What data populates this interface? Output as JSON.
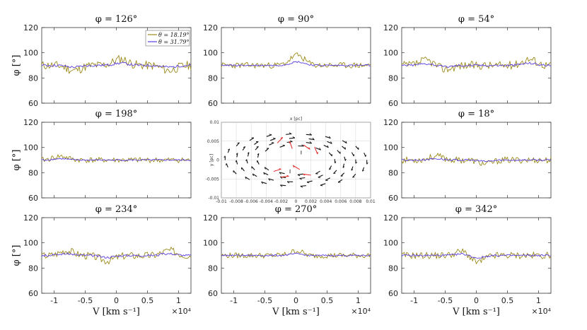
{
  "chart_data": [
    {
      "id": "p0",
      "type": "line",
      "title": "φ = 126°",
      "ylabel": "φ [°]",
      "ylim": [
        60,
        120
      ],
      "xlim": [
        -12000,
        12000
      ],
      "yticks": [
        60,
        80,
        100,
        120
      ],
      "xticks": [
        -10000,
        -5000,
        0,
        5000,
        10000
      ],
      "noise": 3.6,
      "seed": 11,
      "bumps": [
        {
          "x": -6800,
          "a": -4
        },
        {
          "x": 700,
          "a": 5
        },
        {
          "x": 8500,
          "a": -4
        }
      ],
      "series": [
        {
          "name": "θ = 18.19°",
          "color": "#9c8a1c",
          "samples": 121,
          "x_range": [
            -12000,
            12000
          ],
          "baseline": 90
        },
        {
          "name": "θ = 31.79°",
          "color": "#5a3ce0",
          "samples": 121,
          "x_range": [
            -12000,
            12000
          ],
          "baseline": 90
        }
      ],
      "legend": {
        "entries": [
          "θ = 18.19°",
          "θ = 31.79°"
        ],
        "placement": "top-right"
      }
    },
    {
      "id": "p1",
      "type": "line",
      "title": "φ = 90°",
      "ylim": [
        60,
        120
      ],
      "xlim": [
        -12000,
        12000
      ],
      "yticks": [
        60,
        80,
        100,
        120
      ],
      "xticks": [
        -10000,
        -5000,
        0,
        5000,
        10000
      ],
      "noise": 2.4,
      "seed": 23,
      "bumps": [
        {
          "x": 200,
          "a": 8
        }
      ],
      "series": [
        {
          "name": "θ = 18.19°",
          "color": "#9c8a1c",
          "samples": 121,
          "x_range": [
            -12000,
            12000
          ],
          "baseline": 90
        },
        {
          "name": "θ = 31.79°",
          "color": "#5a3ce0",
          "samples": 121,
          "x_range": [
            -12000,
            12000
          ],
          "baseline": 90
        }
      ]
    },
    {
      "id": "p2",
      "type": "line",
      "title": "φ = 54°",
      "ylim": [
        60,
        120
      ],
      "xlim": [
        -12000,
        12000
      ],
      "yticks": [
        60,
        80,
        100,
        120
      ],
      "xticks": [
        -10000,
        -5000,
        0,
        5000,
        10000
      ],
      "noise": 3.3,
      "seed": 37,
      "bumps": [
        {
          "x": -8000,
          "a": 4
        },
        {
          "x": -5000,
          "a": -3
        },
        {
          "x": 8500,
          "a": 5
        }
      ],
      "series": [
        {
          "name": "θ = 18.19°",
          "color": "#9c8a1c",
          "samples": 121,
          "x_range": [
            -12000,
            12000
          ],
          "baseline": 90
        },
        {
          "name": "θ = 31.79°",
          "color": "#5a3ce0",
          "samples": 121,
          "x_range": [
            -12000,
            12000
          ],
          "baseline": 90
        }
      ]
    },
    {
      "id": "p3",
      "type": "line",
      "title": "φ = 198°",
      "ylabel": "φ [°]",
      "ylim": [
        60,
        120
      ],
      "xlim": [
        -12000,
        12000
      ],
      "yticks": [
        60,
        80,
        100,
        120
      ],
      "xticks": [
        -10000,
        -5000,
        0,
        5000,
        10000
      ],
      "noise": 2.2,
      "seed": 41,
      "bumps": [
        {
          "x": -9000,
          "a": 3
        }
      ],
      "series": [
        {
          "name": "θ = 18.19°",
          "color": "#9c8a1c",
          "samples": 121,
          "x_range": [
            -12000,
            12000
          ],
          "baseline": 90
        },
        {
          "name": "θ = 31.79°",
          "color": "#5a3ce0",
          "samples": 121,
          "x_range": [
            -12000,
            12000
          ],
          "baseline": 90
        }
      ]
    },
    {
      "id": "p5",
      "type": "line",
      "title": "φ = 18°",
      "ylim": [
        60,
        120
      ],
      "xlim": [
        -12000,
        12000
      ],
      "yticks": [
        60,
        80,
        100,
        120
      ],
      "xticks": [
        -10000,
        -5000,
        0,
        5000,
        10000
      ],
      "noise": 2.6,
      "seed": 53,
      "bumps": [
        {
          "x": -6500,
          "a": 3
        },
        {
          "x": 1500,
          "a": -3
        }
      ],
      "series": [
        {
          "name": "θ = 18.19°",
          "color": "#9c8a1c",
          "samples": 121,
          "x_range": [
            -12000,
            12000
          ],
          "baseline": 90
        },
        {
          "name": "θ = 31.79°",
          "color": "#5a3ce0",
          "samples": 121,
          "x_range": [
            -12000,
            12000
          ],
          "baseline": 90
        }
      ]
    },
    {
      "id": "p6",
      "type": "line",
      "title": "φ = 234°",
      "ylabel": "φ [°]",
      "ylim": [
        60,
        120
      ],
      "xlim": [
        -12000,
        12000
      ],
      "yticks": [
        60,
        80,
        100,
        120
      ],
      "xticks": [
        -10000,
        -5000,
        0,
        5000,
        10000
      ],
      "noise": 3.0,
      "seed": 67,
      "bumps": [
        {
          "x": -8000,
          "a": 4
        },
        {
          "x": -1500,
          "a": -4
        },
        {
          "x": 8500,
          "a": 4
        }
      ],
      "series": [
        {
          "name": "θ = 18.19°",
          "color": "#9c8a1c",
          "samples": 121,
          "x_range": [
            -12000,
            12000
          ],
          "baseline": 90
        },
        {
          "name": "θ = 31.79°",
          "color": "#5a3ce0",
          "samples": 121,
          "x_range": [
            -12000,
            12000
          ],
          "baseline": 90
        }
      ]
    },
    {
      "id": "p7",
      "type": "line",
      "title": "φ = 270°",
      "xlabel": "V [km s⁻¹]",
      "ylim": [
        60,
        120
      ],
      "xlim": [
        -12000,
        12000
      ],
      "yticks": [
        60,
        80,
        100,
        120
      ],
      "xticks": [
        -10000,
        -5000,
        0,
        5000,
        10000
      ],
      "noise": 2.2,
      "seed": 79,
      "bumps": [
        {
          "x": 500,
          "a": 7
        },
        {
          "x": 1000,
          "a": -4
        }
      ],
      "series": [
        {
          "name": "θ = 18.19°",
          "color": "#9c8a1c",
          "samples": 121,
          "x_range": [
            -12000,
            12000
          ],
          "baseline": 90
        },
        {
          "name": "θ = 31.79°",
          "color": "#5a3ce0",
          "samples": 121,
          "x_range": [
            -12000,
            12000
          ],
          "baseline": 90
        }
      ]
    },
    {
      "id": "p8",
      "type": "line",
      "title": "φ = 342°",
      "ylim": [
        60,
        120
      ],
      "xlim": [
        -12000,
        12000
      ],
      "yticks": [
        60,
        80,
        100,
        120
      ],
      "xticks": [
        -10000,
        -5000,
        0,
        5000,
        10000
      ],
      "noise": 2.8,
      "seed": 91,
      "bumps": [
        {
          "x": -2000,
          "a": 4
        },
        {
          "x": 0,
          "a": -6
        }
      ],
      "series": [
        {
          "name": "θ = 18.19°",
          "color": "#9c8a1c",
          "samples": 121,
          "x_range": [
            -12000,
            12000
          ],
          "baseline": 90
        },
        {
          "name": "θ = 31.79°",
          "color": "#5a3ce0",
          "samples": 121,
          "x_range": [
            -12000,
            12000
          ],
          "baseline": 90
        }
      ]
    },
    {
      "id": "p4",
      "type": "vector-field",
      "title": "x [pc]",
      "xlabel": "x [pc]",
      "ylabel": "y [pc]",
      "xlim": [
        -0.01,
        0.01
      ],
      "ylim": [
        -0.01,
        0.01
      ],
      "xticks": [
        -0.01,
        -0.008,
        -0.006,
        -0.004,
        -0.002,
        0,
        0.002,
        0.004,
        0.006,
        0.008,
        0.01
      ],
      "yticks": [
        0.01,
        0.005,
        0,
        -0.005,
        -0.01
      ],
      "rings": [
        0.0095,
        0.008,
        0.0066,
        0.0052
      ]
    }
  ],
  "labels": {
    "xaxis_label": "V [km s⁻¹]",
    "exponent": "×10⁴",
    "yaxis_label": "φ [°]",
    "xtick_labels": [
      "-1",
      "-0.5",
      "0",
      "0.5",
      "1"
    ],
    "ytick_labels": [
      "120",
      "100",
      "80",
      "60"
    ],
    "field_xtick_labels": [
      "-0.01",
      "-0.008",
      "-0.006",
      "-0.004",
      "-0.002",
      "0",
      "0.002",
      "0.004",
      "0.006",
      "0.008",
      "0.01"
    ],
    "field_ytick_labels": [
      "0.01",
      "0.005",
      "0",
      "-0.005",
      "-0.01"
    ]
  }
}
